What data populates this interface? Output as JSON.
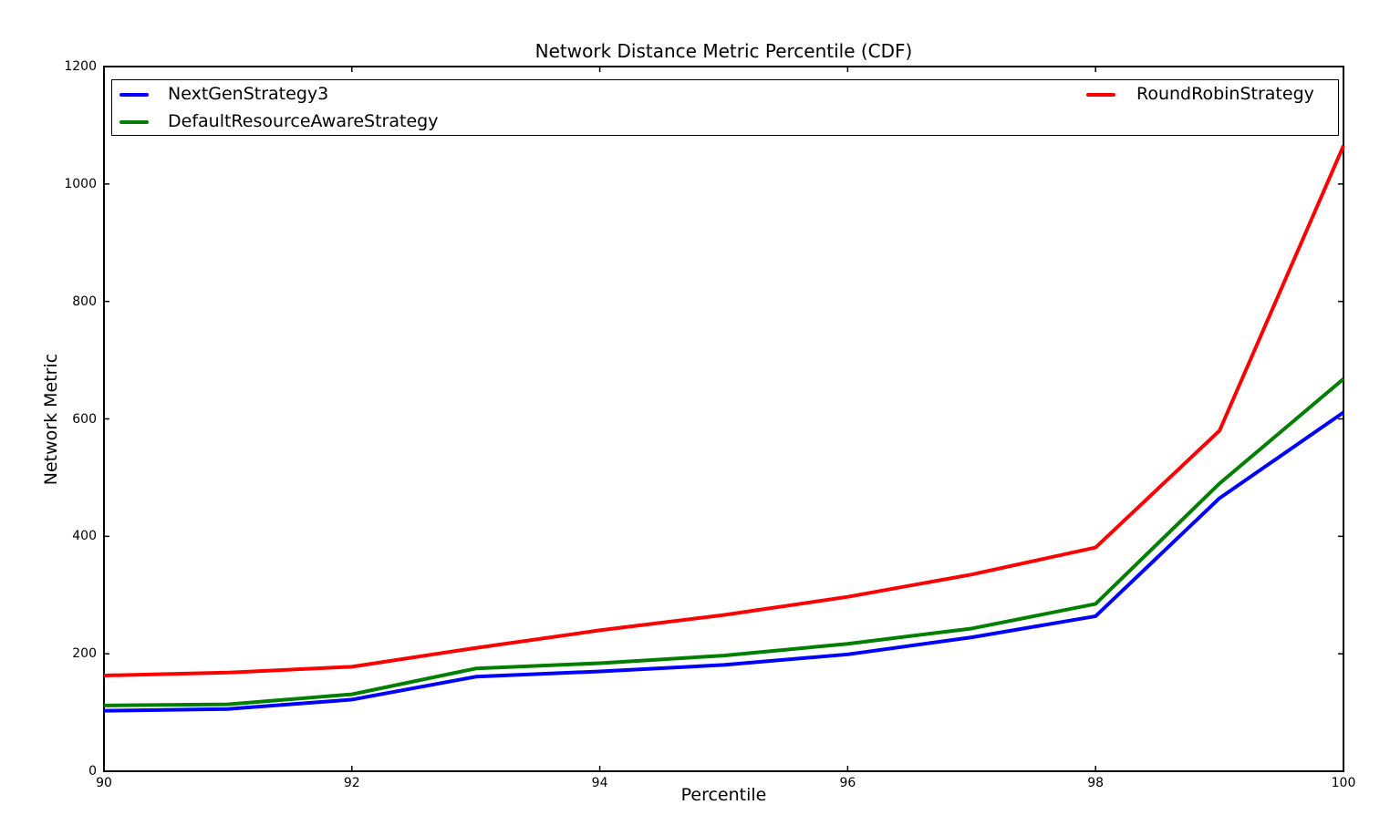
{
  "figure": {
    "title": "Network Distance Metric Percentile (CDF)",
    "xlabel": "Percentile",
    "ylabel": "Network Metric"
  },
  "chart_data": {
    "type": "line",
    "title": "Network Distance Metric Percentile (CDF)",
    "xlabel": "Percentile",
    "ylabel": "Network Metric",
    "xlim": [
      90,
      100
    ],
    "ylim": [
      0,
      1200
    ],
    "xticks": [
      90,
      92,
      94,
      96,
      98,
      100
    ],
    "yticks": [
      0,
      200,
      400,
      600,
      800,
      1000,
      1200
    ],
    "grid": false,
    "legend_position": "top-inside-full-width",
    "x": [
      90,
      91,
      92,
      93,
      94,
      95,
      96,
      97,
      98,
      99,
      100
    ],
    "series": [
      {
        "name": "NextGenStrategy3",
        "color": "#0000ff",
        "values": [
          103,
          106,
          122,
          161,
          170,
          181,
          199,
          228,
          264,
          465,
          611
        ]
      },
      {
        "name": "DefaultResourceAwareStrategy",
        "color": "#007f00",
        "values": [
          112,
          114,
          131,
          175,
          184,
          197,
          217,
          243,
          285,
          490,
          668
        ]
      },
      {
        "name": "RoundRobinStrategy",
        "color": "#ff0000",
        "values": [
          163,
          168,
          178,
          210,
          240,
          266,
          297,
          335,
          381,
          580,
          1065
        ]
      }
    ]
  },
  "legend": {
    "entries": [
      {
        "label": "NextGenStrategy3",
        "color": "#0000ff"
      },
      {
        "label": "DefaultResourceAwareStrategy",
        "color": "#007f00"
      },
      {
        "label": "RoundRobinStrategy",
        "color": "#ff0000"
      }
    ]
  }
}
